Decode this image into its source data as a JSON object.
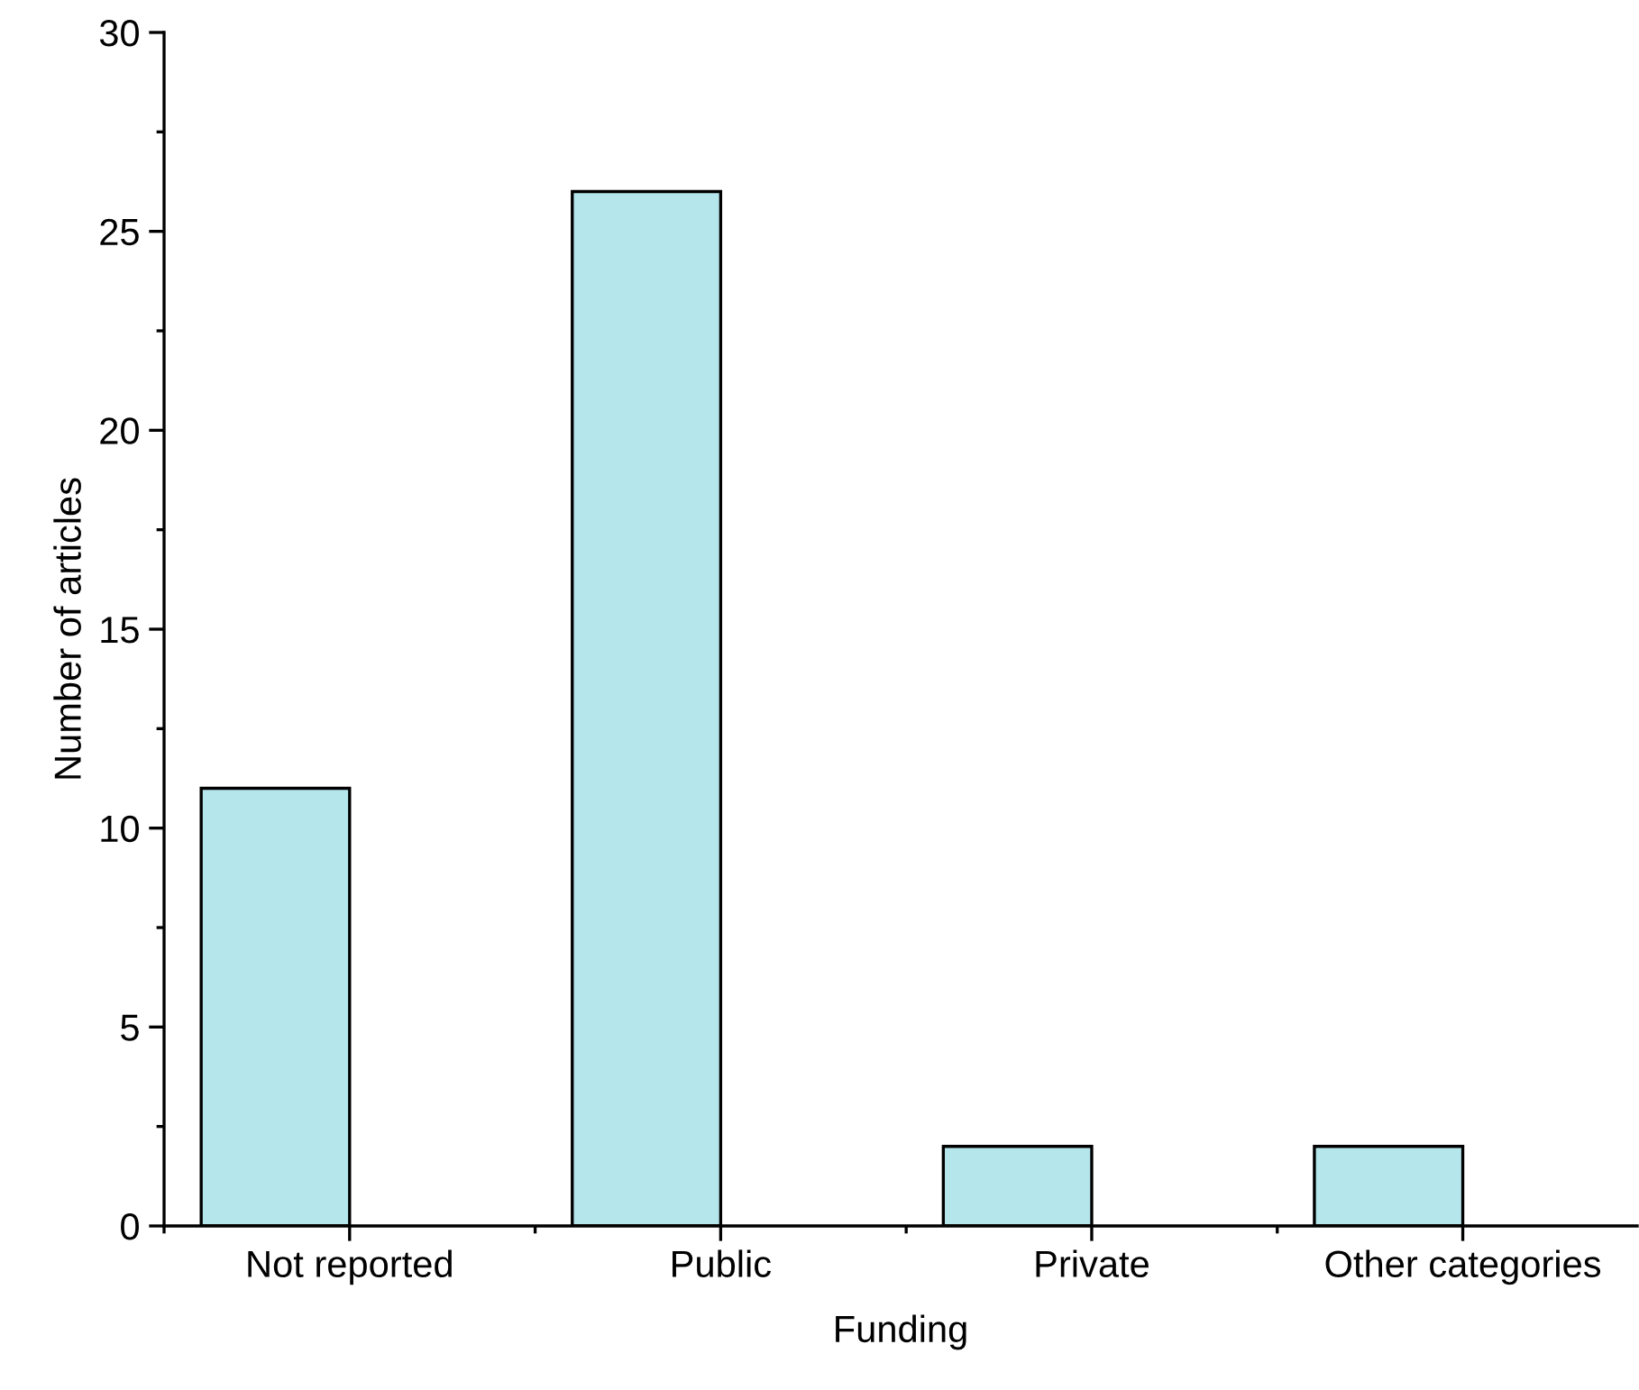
{
  "chart_data": {
    "type": "bar",
    "xlabel": "Funding",
    "ylabel": "Number of articles",
    "categories": [
      "Not reported",
      "Public",
      "Private",
      "Other categories"
    ],
    "values": [
      11,
      26,
      2,
      2
    ],
    "color": "#b5e6ec",
    "ylim": [
      0,
      30
    ],
    "yticks": [
      0,
      5,
      10,
      15,
      20,
      25,
      30
    ],
    "grid": false,
    "legend": false
  }
}
